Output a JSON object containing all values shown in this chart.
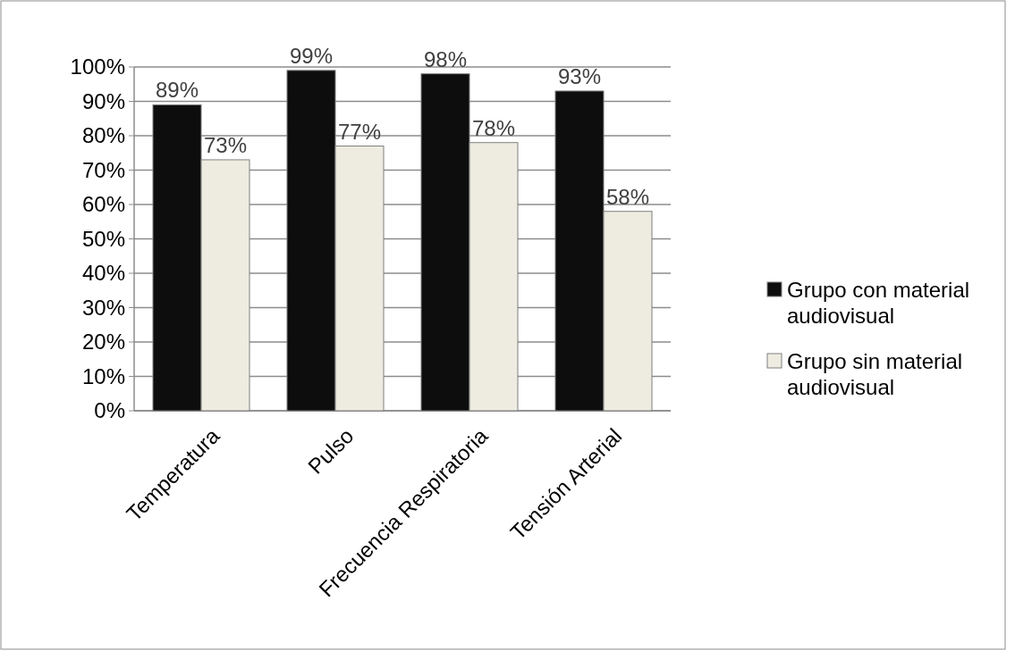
{
  "chart_data": {
    "type": "bar",
    "categories": [
      "Temperatura",
      "Pulso",
      "Frecuencia Respiratoria",
      "Tensión Arterial"
    ],
    "series": [
      {
        "name": "Grupo con material audiovisual",
        "color": "#0d0d0d",
        "values": [
          89,
          99,
          98,
          93
        ],
        "value_labels": [
          "89%",
          "99%",
          "98%",
          "93%"
        ]
      },
      {
        "name": "Grupo sin material audiovisual",
        "color": "#eeece1",
        "values": [
          73,
          77,
          78,
          58
        ],
        "value_labels": [
          "73%",
          "77%",
          "78%",
          "58%"
        ]
      }
    ],
    "ylim": [
      0,
      100
    ],
    "yticks": [
      {
        "value": 0,
        "label": "0%"
      },
      {
        "value": 10,
        "label": "10%"
      },
      {
        "value": 20,
        "label": "20%"
      },
      {
        "value": 30,
        "label": "30%"
      },
      {
        "value": 40,
        "label": "40%"
      },
      {
        "value": 50,
        "label": "50%"
      },
      {
        "value": 60,
        "label": "60%"
      },
      {
        "value": 70,
        "label": "70%"
      },
      {
        "value": 80,
        "label": "80%"
      },
      {
        "value": 90,
        "label": "90%"
      },
      {
        "value": 100,
        "label": "100%"
      }
    ],
    "grid": "y",
    "legend": "right"
  }
}
